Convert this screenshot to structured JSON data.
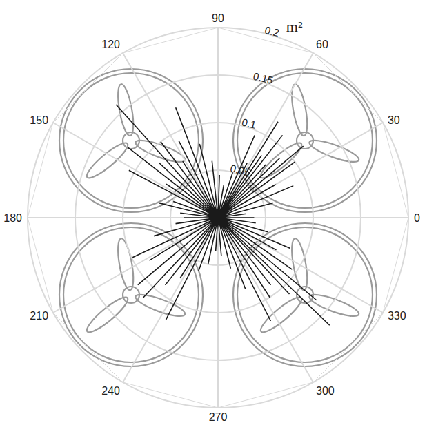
{
  "chart_data": {
    "type": "polar",
    "y_label": "m²",
    "color": "#1a1a1a",
    "grid": true,
    "xlim": [
      0,
      360
    ],
    "xticks": [
      0,
      30,
      60,
      90,
      120,
      150,
      180,
      210,
      240,
      270,
      300,
      330
    ],
    "ylim": [
      0,
      0.2
    ],
    "yticks": [
      0.05,
      0.1,
      0.15,
      0.2
    ],
    "x": [
      0,
      8,
      15,
      23,
      30,
      36,
      40,
      44,
      48,
      52,
      55,
      58,
      62,
      66,
      72,
      80,
      88,
      96,
      104,
      111,
      117,
      122,
      127,
      132,
      137,
      142,
      147,
      152,
      160,
      166,
      173,
      180,
      188,
      196,
      205,
      212,
      220,
      227,
      232,
      238,
      243,
      250,
      258,
      266,
      275,
      284,
      291,
      297,
      303,
      308,
      313,
      316,
      320,
      325,
      331,
      337,
      344,
      352
    ],
    "values": [
      0.038,
      0.03,
      0.06,
      0.086,
      0.07,
      0.1,
      0.117,
      0.09,
      0.075,
      0.11,
      0.08,
      0.119,
      0.065,
      0.095,
      0.05,
      0.035,
      0.045,
      0.06,
      0.08,
      0.124,
      0.091,
      0.07,
      0.1,
      0.16,
      0.085,
      0.12,
      0.065,
      0.106,
      0.05,
      0.064,
      0.04,
      0.036,
      0.045,
      0.07,
      0.099,
      0.085,
      0.11,
      0.116,
      0.09,
      0.075,
      0.121,
      0.06,
      0.05,
      0.035,
      0.04,
      0.055,
      0.08,
      0.122,
      0.1,
      0.09,
      0.11,
      0.163,
      0.135,
      0.095,
      0.07,
      0.082,
      0.055,
      0.04
    ]
  }
}
